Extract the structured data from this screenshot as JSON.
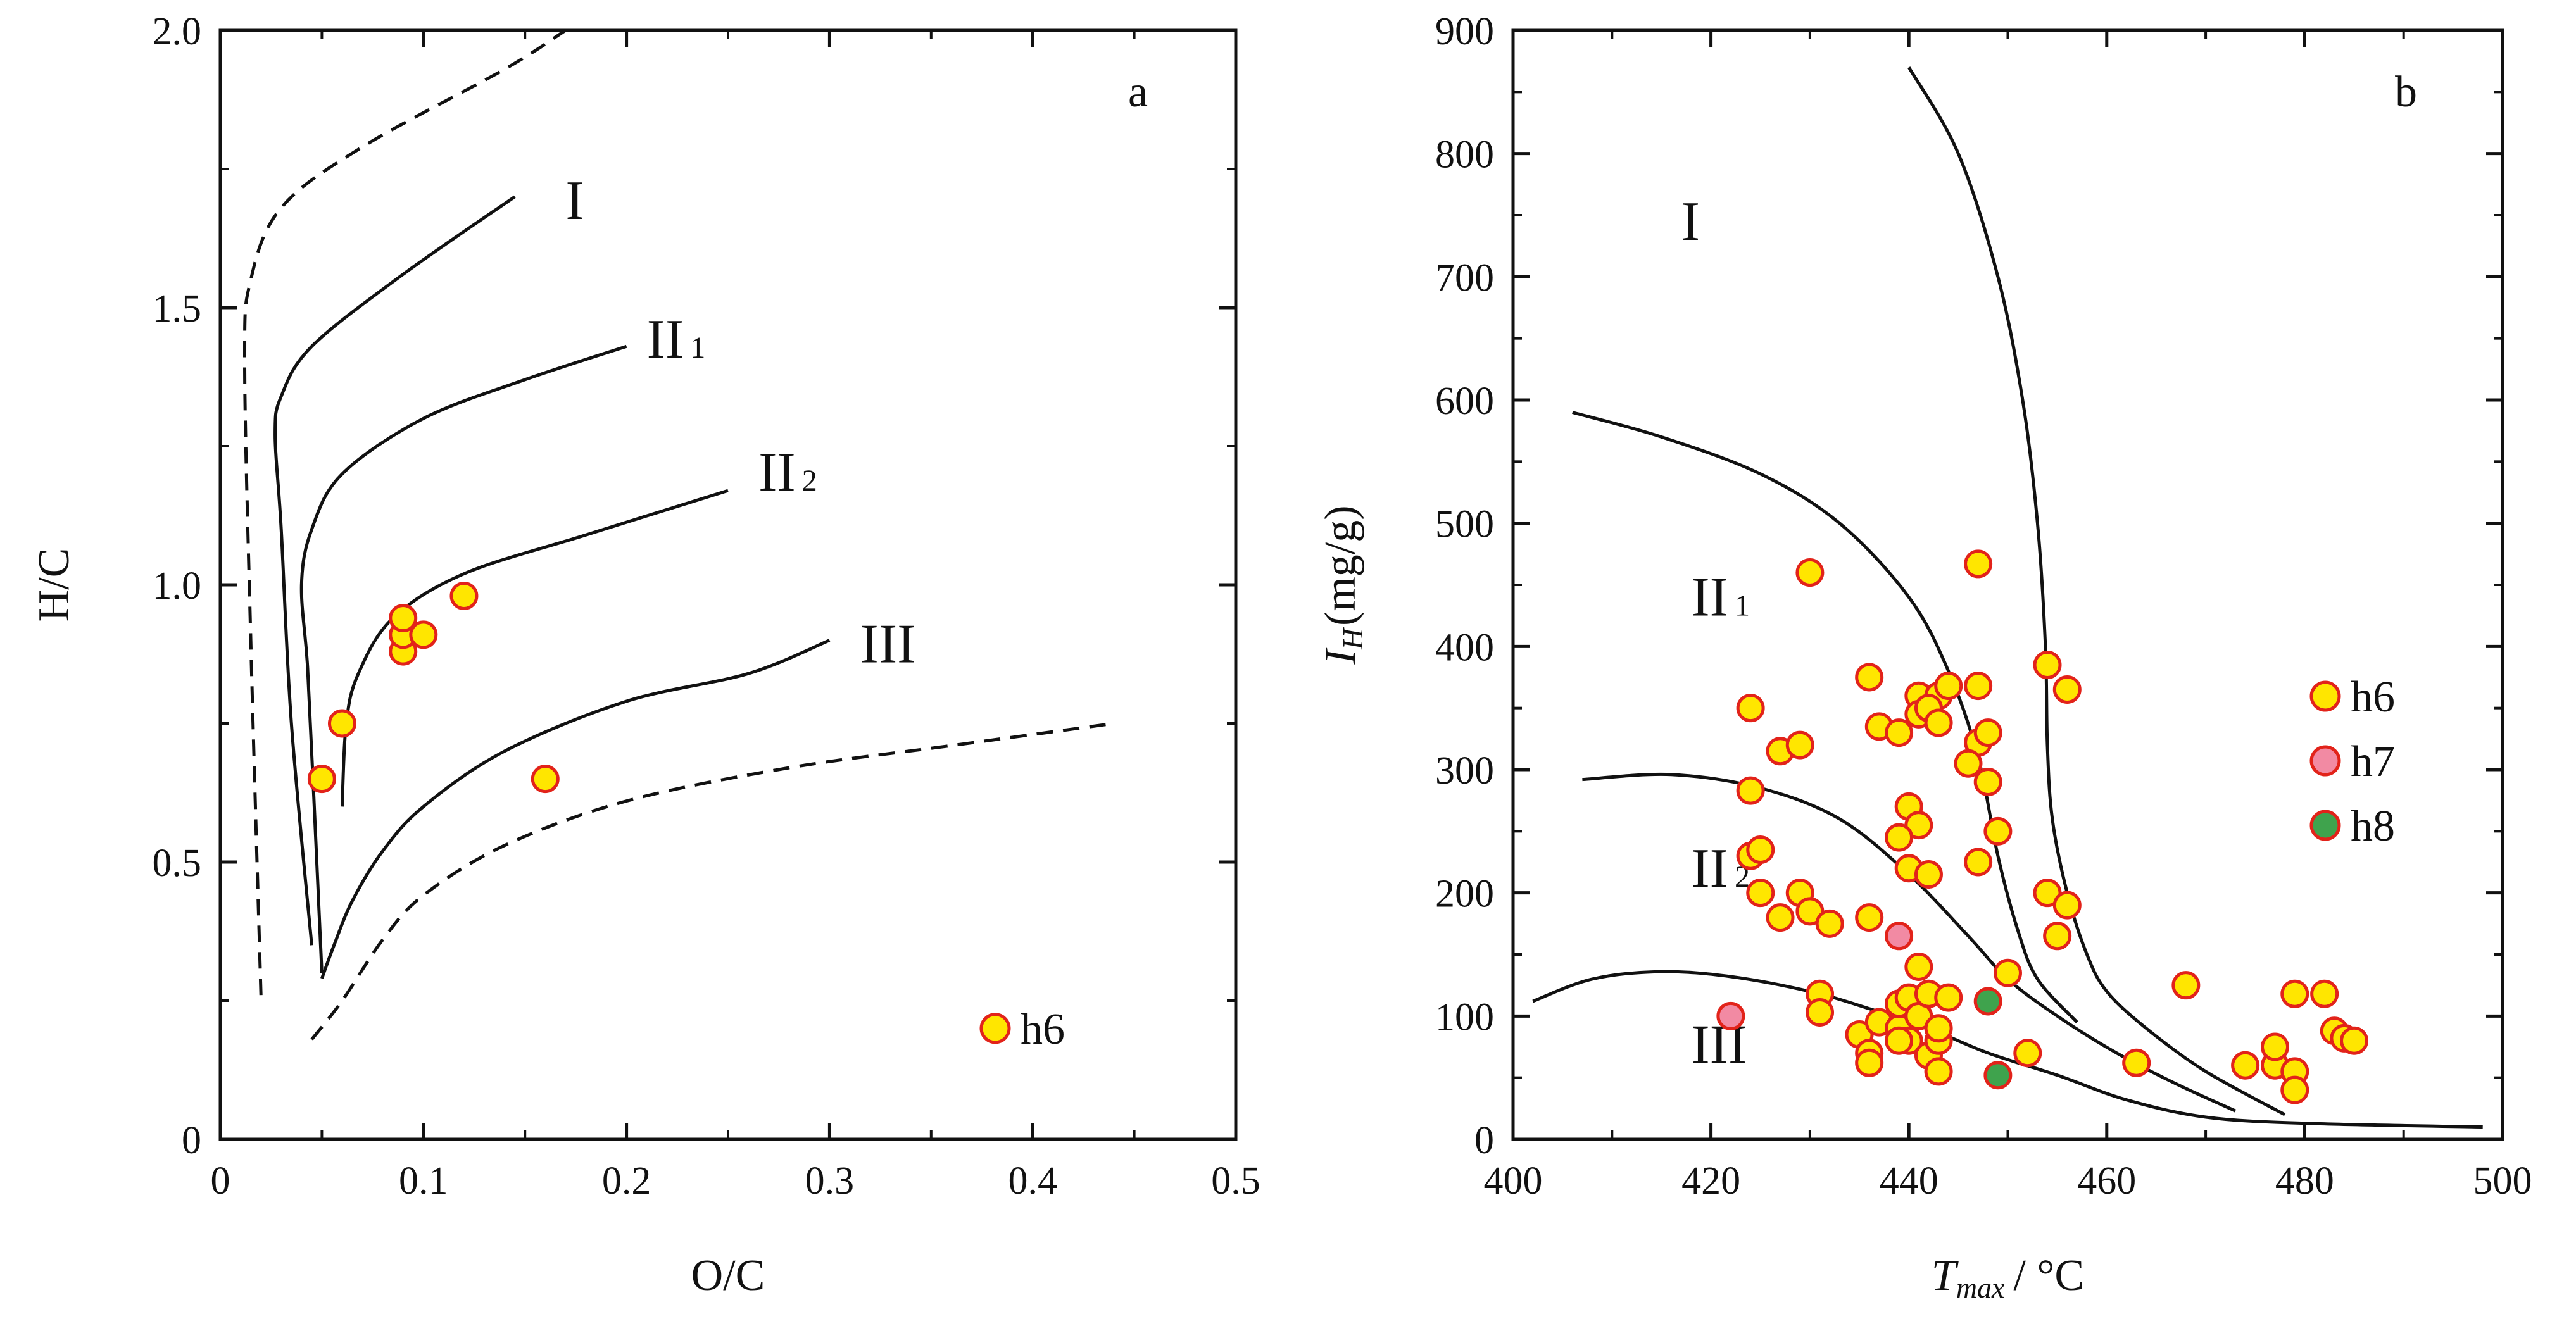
{
  "colors": {
    "marker_h6": "#ffe600",
    "marker_h7": "#f28aa3",
    "marker_h8": "#3fa34d",
    "marker_edge": "#e2231a",
    "line": "#111111"
  },
  "chart_data": [
    {
      "type": "scatter",
      "panel": "a",
      "xlabel": "O/C",
      "ylabel": "H/C",
      "xlim": [
        0,
        0.5
      ],
      "ylim": [
        0,
        2.0
      ],
      "xticks": [
        {
          "v": 0,
          "label": "0"
        },
        {
          "v": 0.1,
          "label": "0.1"
        },
        {
          "v": 0.2,
          "label": "0.2"
        },
        {
          "v": 0.3,
          "label": "0.3"
        },
        {
          "v": 0.4,
          "label": "0.4"
        },
        {
          "v": 0.5,
          "label": "0.5"
        }
      ],
      "yticks": [
        {
          "v": 0,
          "label": "0"
        },
        {
          "v": 0.5,
          "label": "0.5"
        },
        {
          "v": 1.0,
          "label": "1.0"
        },
        {
          "v": 1.5,
          "label": "1.5"
        },
        {
          "v": 2.0,
          "label": "2.0"
        }
      ],
      "curves": [
        {
          "name": "boundary-upper",
          "style": "dashed",
          "points": [
            [
              0.02,
              0.26
            ],
            [
              0.015,
              0.9
            ],
            [
              0.012,
              1.4
            ],
            [
              0.015,
              1.55
            ],
            [
              0.03,
              1.68
            ],
            [
              0.07,
              1.79
            ],
            [
              0.14,
              1.93
            ],
            [
              0.17,
              2.0
            ]
          ]
        },
        {
          "name": "I",
          "style": "solid",
          "points": [
            [
              0.045,
              0.35
            ],
            [
              0.035,
              0.75
            ],
            [
              0.03,
              1.1
            ],
            [
              0.027,
              1.27
            ],
            [
              0.03,
              1.34
            ],
            [
              0.045,
              1.43
            ],
            [
              0.09,
              1.56
            ],
            [
              0.145,
              1.7
            ]
          ]
        },
        {
          "name": "II1",
          "style": "solid",
          "points": [
            [
              0.05,
              0.3
            ],
            [
              0.046,
              0.62
            ],
            [
              0.043,
              0.85
            ],
            [
              0.04,
              1.0
            ],
            [
              0.045,
              1.1
            ],
            [
              0.06,
              1.2
            ],
            [
              0.1,
              1.3
            ],
            [
              0.15,
              1.37
            ],
            [
              0.2,
              1.43
            ]
          ]
        },
        {
          "name": "II2",
          "style": "solid",
          "points": [
            [
              0.06,
              0.6
            ],
            [
              0.062,
              0.75
            ],
            [
              0.068,
              0.84
            ],
            [
              0.085,
              0.94
            ],
            [
              0.12,
              1.02
            ],
            [
              0.18,
              1.09
            ],
            [
              0.25,
              1.17
            ]
          ]
        },
        {
          "name": "III",
          "style": "solid",
          "points": [
            [
              0.05,
              0.29
            ],
            [
              0.056,
              0.35
            ],
            [
              0.065,
              0.43
            ],
            [
              0.08,
              0.52
            ],
            [
              0.1,
              0.6
            ],
            [
              0.14,
              0.7
            ],
            [
              0.2,
              0.79
            ],
            [
              0.26,
              0.84
            ],
            [
              0.3,
              0.9
            ]
          ]
        },
        {
          "name": "boundary-lower",
          "style": "dashed",
          "points": [
            [
              0.045,
              0.18
            ],
            [
              0.06,
              0.25
            ],
            [
              0.08,
              0.36
            ],
            [
              0.1,
              0.44
            ],
            [
              0.14,
              0.53
            ],
            [
              0.2,
              0.61
            ],
            [
              0.28,
              0.67
            ],
            [
              0.36,
              0.71
            ],
            [
              0.44,
              0.75
            ]
          ]
        }
      ],
      "region_labels": [
        {
          "id": "I",
          "text": "I",
          "x": 0.17,
          "y": 1.66
        },
        {
          "id": "II1",
          "text": "II",
          "sub": "1",
          "x": 0.21,
          "y": 1.41
        },
        {
          "id": "II2",
          "text": "II",
          "sub": "2",
          "x": 0.265,
          "y": 1.17
        },
        {
          "id": "III",
          "text": "III",
          "x": 0.315,
          "y": 0.86
        }
      ],
      "panel_letter": "a",
      "series": [
        {
          "name": "h6",
          "color": "#ffe600",
          "points": [
            [
              0.05,
              0.65
            ],
            [
              0.06,
              0.75
            ],
            [
              0.09,
              0.88
            ],
            [
              0.09,
              0.91
            ],
            [
              0.09,
              0.94
            ],
            [
              0.1,
              0.91
            ],
            [
              0.12,
              0.98
            ],
            [
              0.16,
              0.65
            ]
          ]
        }
      ],
      "legend": [
        {
          "name": "h6",
          "label": "h6",
          "color": "#ffe600"
        }
      ],
      "legend_position": "bottom-right"
    },
    {
      "type": "scatter",
      "panel": "b",
      "xlabel": "T",
      "xlabel_sub": "max",
      "xlabel_unit": "/  °C",
      "ylabel": "I",
      "ylabel_sub": "H",
      "ylabel_unit": "(mg/g)",
      "xlim": [
        400,
        500
      ],
      "ylim": [
        0,
        900
      ],
      "xticks": [
        {
          "v": 400,
          "label": "400"
        },
        {
          "v": 420,
          "label": "420"
        },
        {
          "v": 440,
          "label": "440"
        },
        {
          "v": 460,
          "label": "460"
        },
        {
          "v": 480,
          "label": "480"
        },
        {
          "v": 500,
          "label": "500"
        }
      ],
      "yticks": [
        {
          "v": 0,
          "label": "0"
        },
        {
          "v": 100,
          "label": "100"
        },
        {
          "v": 200,
          "label": "200"
        },
        {
          "v": 300,
          "label": "300"
        },
        {
          "v": 400,
          "label": "400"
        },
        {
          "v": 500,
          "label": "500"
        },
        {
          "v": 600,
          "label": "600"
        },
        {
          "v": 700,
          "label": "700"
        },
        {
          "v": 800,
          "label": "800"
        },
        {
          "v": 900,
          "label": "900"
        }
      ],
      "curves": [
        {
          "name": "I",
          "style": "solid",
          "points": [
            [
              440,
              870
            ],
            [
              445,
              800
            ],
            [
              449,
              700
            ],
            [
              451.5,
              600
            ],
            [
              453,
              500
            ],
            [
              453.8,
              400
            ],
            [
              454,
              320
            ],
            [
              454.5,
              260
            ],
            [
              456,
              200
            ],
            [
              458,
              150
            ],
            [
              460,
              120
            ],
            [
              464,
              90
            ],
            [
              470,
              55
            ],
            [
              478,
              20
            ]
          ]
        },
        {
          "name": "II1",
          "style": "solid",
          "points": [
            [
              406,
              590
            ],
            [
              415,
              570
            ],
            [
              425,
              540
            ],
            [
              433,
              500
            ],
            [
              440,
              440
            ],
            [
              444,
              380
            ],
            [
              447,
              310
            ],
            [
              449,
              230
            ],
            [
              451,
              170
            ],
            [
              453,
              130
            ],
            [
              457,
              95
            ]
          ]
        },
        {
          "name": "II2",
          "style": "solid",
          "points": [
            [
              407,
              292
            ],
            [
              416,
              296
            ],
            [
              425,
              285
            ],
            [
              433,
              260
            ],
            [
              440,
              215
            ],
            [
              446,
              165
            ],
            [
              450,
              130
            ],
            [
              455,
              100
            ],
            [
              461,
              70
            ],
            [
              467,
              45
            ],
            [
              473,
              23
            ]
          ]
        },
        {
          "name": "III",
          "style": "solid",
          "points": [
            [
              402,
              112
            ],
            [
              408,
              130
            ],
            [
              415,
              136
            ],
            [
              422,
              132
            ],
            [
              430,
              120
            ],
            [
              436,
              106
            ],
            [
              442,
              90
            ],
            [
              448,
              70
            ],
            [
              455,
              52
            ],
            [
              462,
              32
            ],
            [
              470,
              18
            ],
            [
              480,
              13
            ],
            [
              498,
              10
            ]
          ]
        }
      ],
      "region_labels": [
        {
          "id": "I",
          "text": "I",
          "x": 417,
          "y": 730
        },
        {
          "id": "II1",
          "text": "II",
          "sub": "1",
          "x": 418,
          "y": 425
        },
        {
          "id": "II2",
          "text": "II",
          "sub": "2",
          "x": 418,
          "y": 205
        },
        {
          "id": "III",
          "text": "III",
          "x": 418,
          "y": 62
        }
      ],
      "panel_letter": "b",
      "series": [
        {
          "name": "h6",
          "color": "#ffe600",
          "points": [
            [
              430,
              460
            ],
            [
              447,
              467
            ],
            [
              424,
              350
            ],
            [
              424,
              283
            ],
            [
              427,
              315
            ],
            [
              429,
              320
            ],
            [
              424,
              230
            ],
            [
              425,
              235
            ],
            [
              425,
              200
            ],
            [
              427,
              180
            ],
            [
              429,
              200
            ],
            [
              430,
              185
            ],
            [
              432,
              175
            ],
            [
              436,
              375
            ],
            [
              437,
              335
            ],
            [
              439,
              330
            ],
            [
              440,
              270
            ],
            [
              441,
              255
            ],
            [
              439,
              245
            ],
            [
              440,
              220
            ],
            [
              442,
              215
            ],
            [
              436,
              180
            ],
            [
              441,
              360
            ],
            [
              441,
              345
            ],
            [
              443,
              360
            ],
            [
              444,
              368
            ],
            [
              442,
              350
            ],
            [
              443,
              338
            ],
            [
              447,
              368
            ],
            [
              447,
              322
            ],
            [
              448,
              330
            ],
            [
              446,
              305
            ],
            [
              448,
              290
            ],
            [
              447,
              225
            ],
            [
              449,
              250
            ],
            [
              454,
              385
            ],
            [
              456,
              365
            ],
            [
              454,
              200
            ],
            [
              456,
              190
            ],
            [
              455,
              165
            ],
            [
              450,
              135
            ],
            [
              452,
              70
            ],
            [
              431,
              118
            ],
            [
              431,
              103
            ],
            [
              435,
              85
            ],
            [
              436,
              70
            ],
            [
              436,
              62
            ],
            [
              437,
              95
            ],
            [
              439,
              90
            ],
            [
              439,
              110
            ],
            [
              440,
              115
            ],
            [
              441,
              100
            ],
            [
              440,
              80
            ],
            [
              442,
              118
            ],
            [
              444,
              115
            ],
            [
              439,
              80
            ],
            [
              442,
              68
            ],
            [
              443,
              80
            ],
            [
              443,
              90
            ],
            [
              443,
              55
            ],
            [
              441,
              140
            ],
            [
              463,
              62
            ],
            [
              468,
              125
            ],
            [
              474,
              60
            ],
            [
              477,
              60
            ],
            [
              477,
              75
            ],
            [
              479,
              118
            ],
            [
              479,
              55
            ],
            [
              479,
              40
            ],
            [
              482,
              118
            ],
            [
              483,
              88
            ],
            [
              484,
              82
            ],
            [
              485,
              80
            ]
          ]
        },
        {
          "name": "h7",
          "color": "#f28aa3",
          "points": [
            [
              422,
              100
            ],
            [
              439,
              165
            ]
          ]
        },
        {
          "name": "h8",
          "color": "#3fa34d",
          "points": [
            [
              448,
              112
            ],
            [
              449,
              52
            ]
          ]
        }
      ],
      "legend": [
        {
          "name": "h6",
          "label": "h6",
          "color": "#ffe600"
        },
        {
          "name": "h7",
          "label": "h7",
          "color": "#f28aa3"
        },
        {
          "name": "h8",
          "label": "h8",
          "color": "#3fa34d"
        }
      ],
      "legend_position": "right"
    }
  ]
}
